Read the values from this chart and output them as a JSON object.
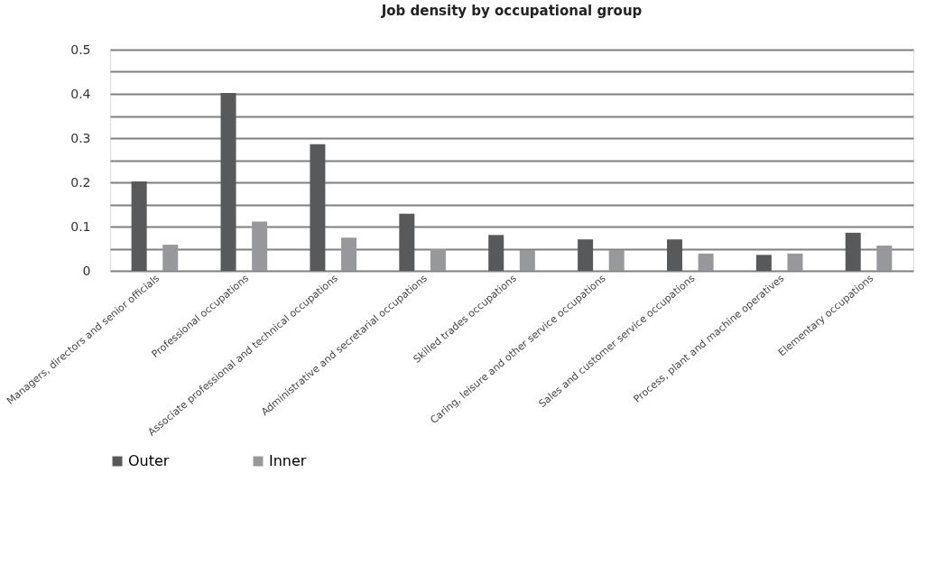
{
  "chart_data": {
    "type": "bar",
    "title": "Job density by occupational group",
    "categories": [
      "Managers, directors and senior officials",
      "Professional occupations",
      "Associate professional and technical occupations",
      "Administrative and secretarial occupations",
      "Skilled trades occupations",
      "Caring, leisure and other service occupations",
      "Sales and customer service occupations",
      "Process, plant and machine operatives",
      "Elementary occupations"
    ],
    "series": [
      {
        "name": "Outer",
        "color": "#58595b",
        "values": [
          0.202,
          0.402,
          0.286,
          0.129,
          0.081,
          0.071,
          0.071,
          0.036,
          0.086
        ]
      },
      {
        "name": "Inner",
        "color": "#97989b",
        "values": [
          0.059,
          0.111,
          0.075,
          0.049,
          0.047,
          0.047,
          0.039,
          0.039,
          0.057
        ]
      }
    ],
    "ylim": [
      0,
      0.5
    ],
    "yticks": [
      0,
      {
        "value": 0.05,
        "label": null
      },
      0.1,
      {
        "value": 0.15,
        "label": null
      },
      0.2,
      {
        "value": 0.25,
        "label": null
      },
      0.3,
      {
        "value": 0.35,
        "label": null
      },
      0.4,
      {
        "value": 0.45,
        "label": null
      },
      0.5
    ],
    "grid": "y",
    "legend": "bottom"
  }
}
